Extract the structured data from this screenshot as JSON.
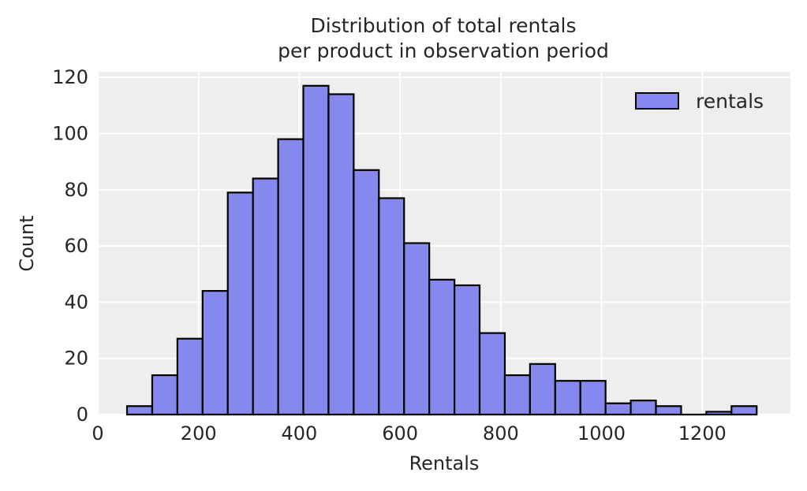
{
  "chart_data": {
    "type": "bar",
    "title_lines": [
      "Distribution of total rentals",
      "per product in observation period"
    ],
    "xlabel": "Rentals",
    "ylabel": "Count",
    "xlim": [
      0,
      1375
    ],
    "ylim": [
      0,
      122
    ],
    "x_ticks": [
      0,
      200,
      400,
      600,
      800,
      1000,
      1200
    ],
    "y_ticks": [
      0,
      20,
      40,
      60,
      80,
      100,
      120
    ],
    "grid": true,
    "legend": {
      "placement": "top-right",
      "entries": [
        "rentals"
      ]
    },
    "bar_color": "#8788EE",
    "edge_color": "#000000",
    "background": "#EEEEEE",
    "bins": [
      {
        "start": 58,
        "end": 108,
        "count": 3
      },
      {
        "start": 108,
        "end": 158,
        "count": 14
      },
      {
        "start": 158,
        "end": 208,
        "count": 27
      },
      {
        "start": 208,
        "end": 258,
        "count": 44
      },
      {
        "start": 258,
        "end": 308,
        "count": 79
      },
      {
        "start": 308,
        "end": 358,
        "count": 84
      },
      {
        "start": 358,
        "end": 408,
        "count": 98
      },
      {
        "start": 408,
        "end": 458,
        "count": 117
      },
      {
        "start": 458,
        "end": 508,
        "count": 114
      },
      {
        "start": 508,
        "end": 558,
        "count": 87
      },
      {
        "start": 558,
        "end": 608,
        "count": 77
      },
      {
        "start": 608,
        "end": 658,
        "count": 61
      },
      {
        "start": 658,
        "end": 708,
        "count": 48
      },
      {
        "start": 708,
        "end": 758,
        "count": 46
      },
      {
        "start": 758,
        "end": 808,
        "count": 29
      },
      {
        "start": 808,
        "end": 858,
        "count": 14
      },
      {
        "start": 858,
        "end": 908,
        "count": 18
      },
      {
        "start": 908,
        "end": 958,
        "count": 12
      },
      {
        "start": 958,
        "end": 1008,
        "count": 12
      },
      {
        "start": 1008,
        "end": 1058,
        "count": 4
      },
      {
        "start": 1058,
        "end": 1108,
        "count": 5
      },
      {
        "start": 1108,
        "end": 1158,
        "count": 3
      },
      {
        "start": 1158,
        "end": 1208,
        "count": 0
      },
      {
        "start": 1208,
        "end": 1258,
        "count": 1
      },
      {
        "start": 1258,
        "end": 1308,
        "count": 3
      }
    ]
  }
}
